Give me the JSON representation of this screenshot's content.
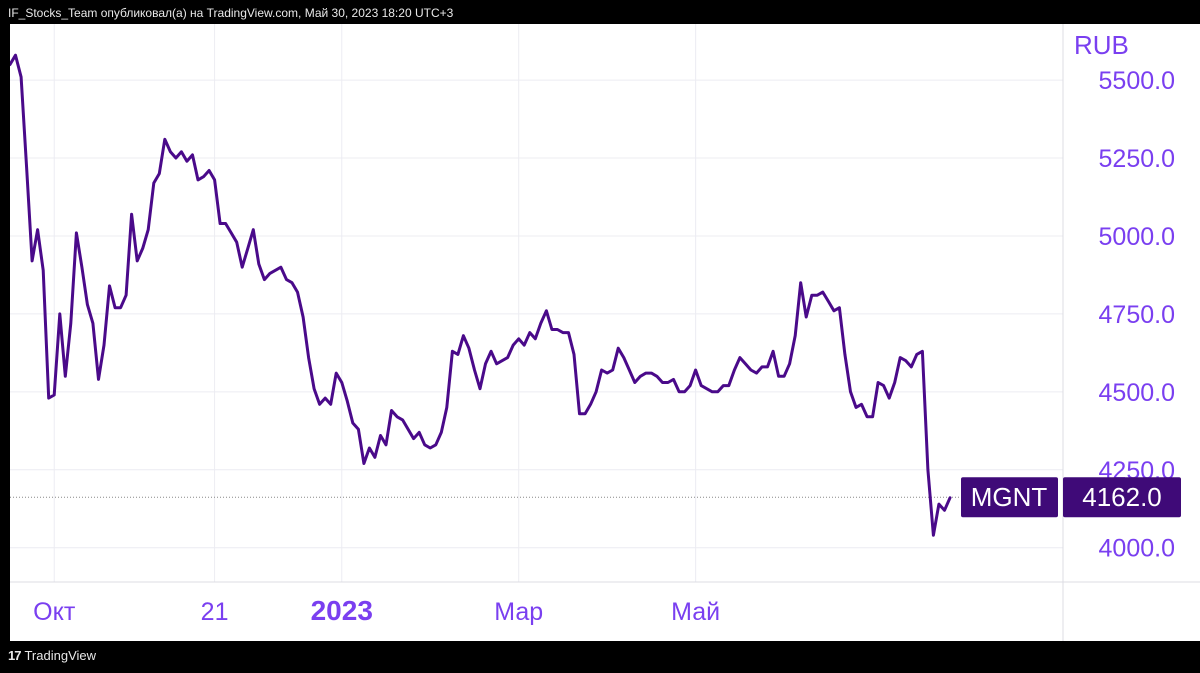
{
  "header": {
    "caption": "IF_Stocks_Team опубликовал(а) на TradingView.com, Май 30, 2023 18:20 UTC+3"
  },
  "footer": {
    "logo_glyph": "17",
    "brand": "TradingView"
  },
  "colors": {
    "background": "#ffffff",
    "line": "#4a0a8a",
    "axis_text": "#7a3ff0",
    "grid": "#ececf2",
    "badge_bg": "#3f0a78",
    "badge_text": "#ffffff"
  },
  "chart_data": {
    "type": "line",
    "currency": "RUB",
    "ticker": "MGNT",
    "last_price_label": "4162.0",
    "last_price": 4162,
    "ylim": [
      3890,
      5680
    ],
    "y_ticks": [
      {
        "value": 5500,
        "label": "5500.0"
      },
      {
        "value": 5250,
        "label": "5250.0"
      },
      {
        "value": 5000,
        "label": "5000.0"
      },
      {
        "value": 4750,
        "label": "4750.0"
      },
      {
        "value": 4500,
        "label": "4500.0"
      },
      {
        "value": 4250,
        "label": "4250.0"
      },
      {
        "value": 4000,
        "label": "4000.0"
      }
    ],
    "x_ticks": [
      {
        "label": "Окт",
        "index": 8,
        "bold": false
      },
      {
        "label": "21",
        "index": 37,
        "bold": false
      },
      {
        "label": "2023",
        "index": 60,
        "bold": true
      },
      {
        "label": "Мар",
        "index": 92,
        "bold": false
      },
      {
        "label": "Май",
        "index": 124,
        "bold": false
      }
    ],
    "grid": true,
    "series": [
      {
        "values": [
          5550,
          5580,
          5510,
          5220,
          4920,
          5020,
          4890,
          4480,
          4490,
          4750,
          4550,
          4720,
          5010,
          4900,
          4780,
          4720,
          4540,
          4650,
          4840,
          4770,
          4770,
          4810,
          5070,
          4920,
          4960,
          5020,
          5170,
          5200,
          5310,
          5270,
          5250,
          5270,
          5240,
          5260,
          5180,
          5190,
          5210,
          5180,
          5040,
          5040,
          5010,
          4980,
          4900,
          4960,
          5020,
          4910,
          4860,
          4880,
          4890,
          4900,
          4860,
          4850,
          4820,
          4740,
          4610,
          4510,
          4460,
          4480,
          4460,
          4560,
          4530,
          4470,
          4400,
          4380,
          4270,
          4320,
          4290,
          4360,
          4330,
          4440,
          4420,
          4410,
          4380,
          4350,
          4370,
          4330,
          4320,
          4330,
          4370,
          4450,
          4630,
          4620,
          4680,
          4640,
          4570,
          4510,
          4590,
          4630,
          4590,
          4600,
          4610,
          4650,
          4670,
          4650,
          4690,
          4670,
          4720,
          4760,
          4700,
          4700,
          4690,
          4690,
          4620,
          4430,
          4430,
          4460,
          4500,
          4570,
          4560,
          4570,
          4640,
          4610,
          4570,
          4530,
          4550,
          4560,
          4560,
          4550,
          4530,
          4530,
          4540,
          4500,
          4500,
          4520,
          4570,
          4520,
          4510,
          4500,
          4500,
          4520,
          4520,
          4570,
          4610,
          4590,
          4570,
          4560,
          4580,
          4580,
          4630,
          4550,
          4550,
          4590,
          4680,
          4850,
          4740,
          4810,
          4810,
          4820,
          4790,
          4760,
          4770,
          4620,
          4500,
          4450,
          4460,
          4420,
          4420,
          4530,
          4520,
          4480,
          4530,
          4610,
          4600,
          4580,
          4620,
          4630,
          4250,
          4040,
          4140,
          4120,
          4160
        ]
      }
    ]
  }
}
